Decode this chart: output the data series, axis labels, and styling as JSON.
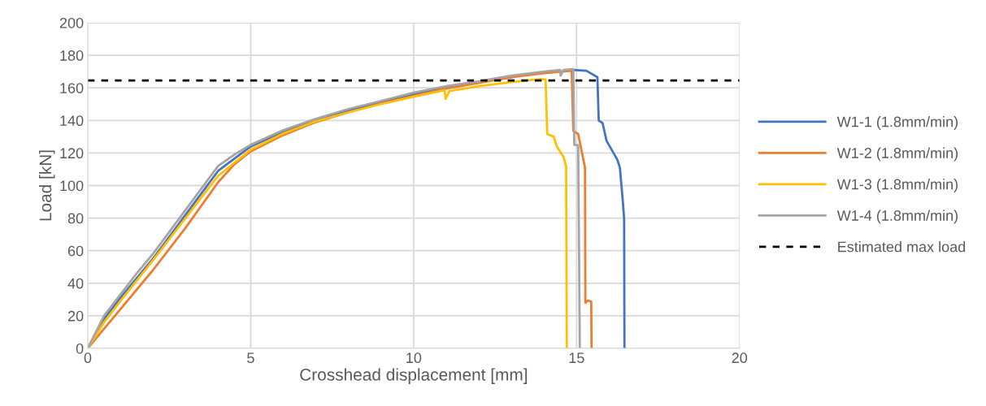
{
  "chart_data": {
    "type": "line",
    "xlabel": "Crosshead displacement [mm]",
    "ylabel": "Load [kN]",
    "xlim": [
      0,
      20
    ],
    "xticks": [
      0,
      5,
      10,
      15,
      20
    ],
    "ylim": [
      0,
      200
    ],
    "yticks": [
      0,
      20,
      40,
      60,
      80,
      100,
      120,
      140,
      160,
      180,
      200
    ],
    "grid": true,
    "legend": "right",
    "marker": "none",
    "line_style": "solid",
    "series": [
      {
        "name": "W1-1 (1.8mm/min)",
        "color": "#4472c4",
        "x": [
          0,
          0.5,
          1,
          2,
          3,
          4,
          5,
          6,
          7,
          8,
          9,
          10,
          11,
          12,
          13,
          14,
          14.9,
          15.3,
          15.64,
          15.68,
          15.8,
          15.92,
          16.25,
          16.33,
          16.43,
          16.46,
          16.47
        ],
        "values": [
          0,
          18,
          31,
          55,
          82,
          109,
          124,
          133,
          140,
          146,
          151,
          156,
          160,
          163.5,
          166.5,
          null,
          171,
          170.5,
          166.6,
          140,
          138.3,
          127.5,
          115.9,
          110.9,
          87.8,
          79.3,
          0
        ]
      },
      {
        "name": "W1-2 (1.8mm/min)",
        "color": "#ed7d31",
        "x": [
          0,
          1,
          2,
          3,
          4,
          4.5,
          5,
          6,
          7,
          8,
          9,
          10,
          11,
          12,
          13,
          14,
          14.85,
          14.9,
          15.05,
          15.26,
          15.27,
          15.35,
          15.45,
          15.46
        ],
        "values": [
          0,
          24,
          48,
          74,
          102,
          113,
          121,
          131,
          139,
          145,
          150.5,
          155,
          159.5,
          163,
          166.5,
          169,
          170.5,
          133.5,
          131.7,
          110.9,
          28,
          29.4,
          28.6,
          0
        ]
      },
      {
        "name": "W1-3 (1.8mm/min)",
        "color": "#ffc000",
        "x": [
          0,
          0.5,
          1,
          2,
          3,
          4,
          5,
          6,
          7,
          8,
          9,
          10,
          10.95,
          10.98,
          11.1,
          12,
          13,
          13.9,
          14.05,
          14.1,
          14.3,
          14.39,
          14.6,
          14.68,
          14.7
        ],
        "values": [
          0,
          16,
          29,
          54,
          80,
          106,
          122,
          132,
          139.5,
          145,
          150,
          154.5,
          158.5,
          153.3,
          158,
          161,
          163.5,
          165.4,
          165,
          131.7,
          130,
          124.2,
          117.6,
          111.7,
          0
        ]
      },
      {
        "name": "W1-4 (1.8mm/min)",
        "color": "#a5a5a5",
        "x": [
          0,
          0.5,
          1,
          1.5,
          2,
          3,
          4,
          4.5,
          5,
          6,
          7,
          8,
          9,
          10,
          11,
          12,
          13,
          14,
          14.5,
          14.51,
          14.6,
          14.9,
          14.93,
          15.05,
          15.1
        ],
        "values": [
          0,
          20,
          33,
          46,
          58,
          85,
          112,
          119,
          125,
          134,
          141,
          147,
          152,
          157,
          161,
          164,
          167.5,
          170,
          171,
          167.5,
          171,
          171.5,
          125,
          124.7,
          0
        ]
      }
    ],
    "ref_lines": [
      {
        "axis": "y",
        "value": 164.5,
        "label": "Estimated max load",
        "color": "#000000",
        "line_style": "dashed"
      }
    ]
  }
}
